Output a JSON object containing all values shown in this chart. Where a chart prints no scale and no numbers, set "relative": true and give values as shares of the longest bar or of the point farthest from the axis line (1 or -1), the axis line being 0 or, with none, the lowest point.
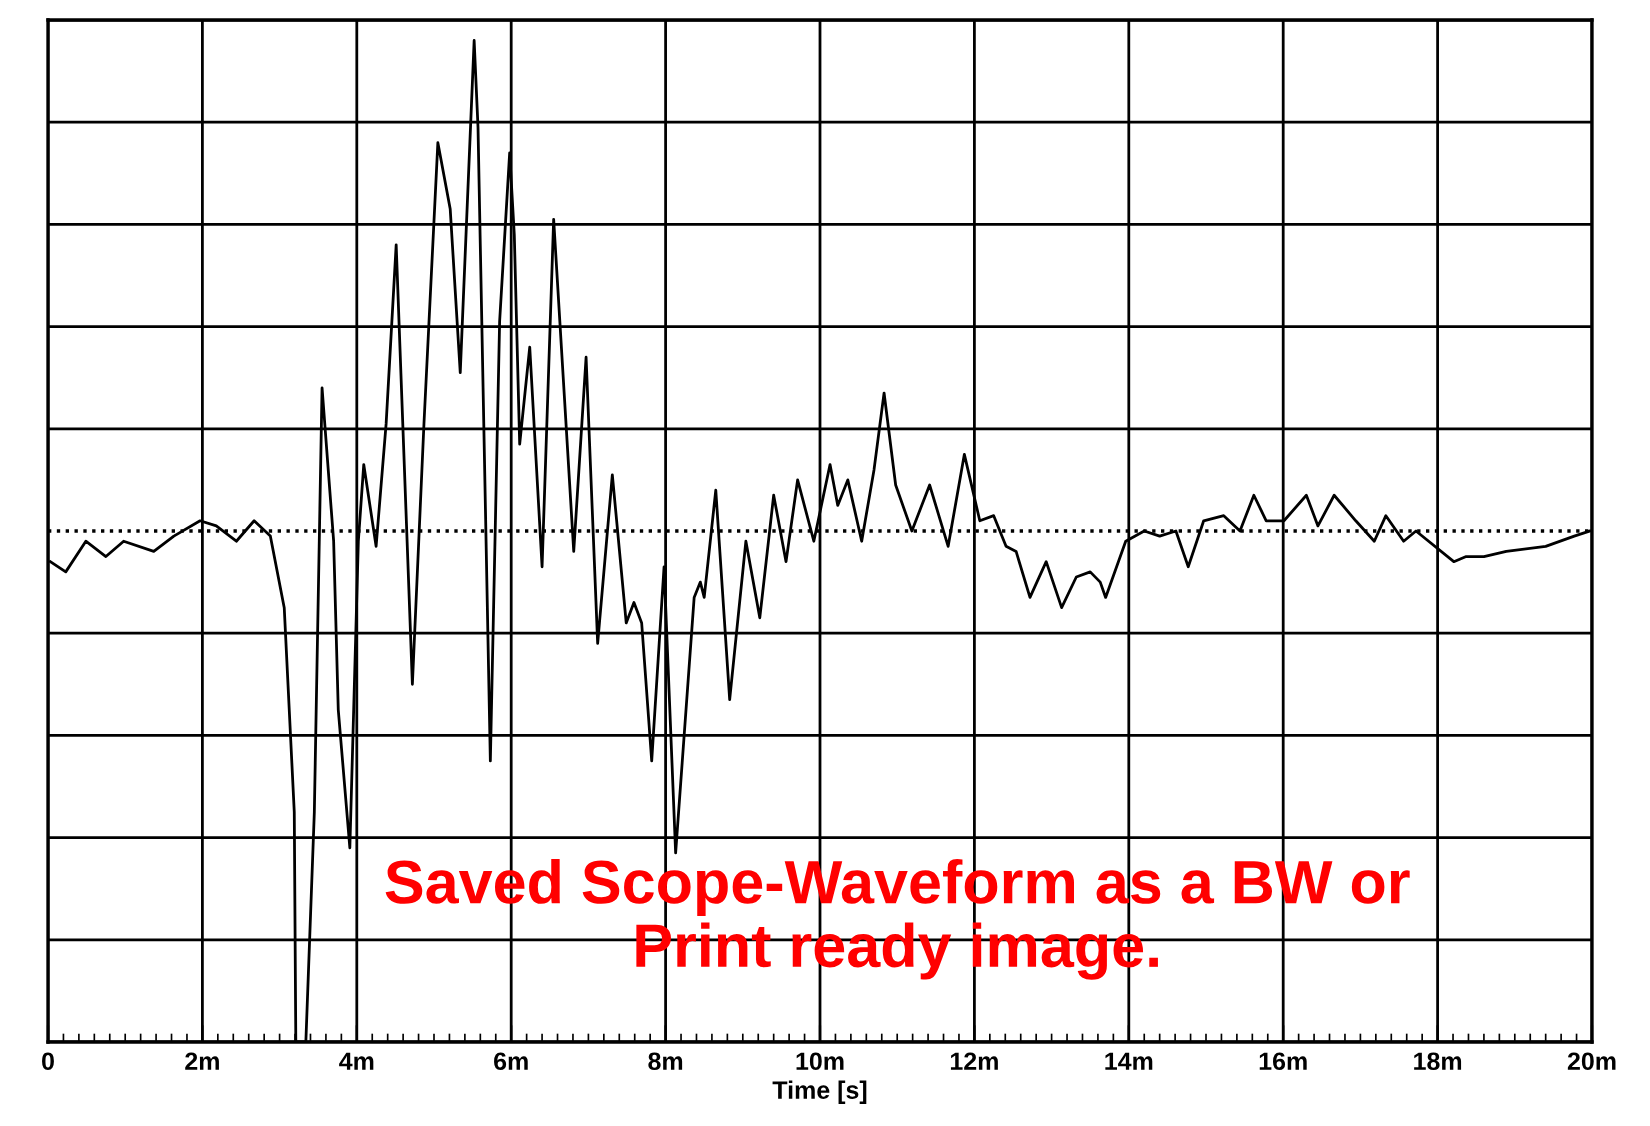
{
  "chart_data": {
    "type": "line",
    "relative": true,
    "xlabel": "Time [s]",
    "xlim": [
      0,
      20
    ],
    "xticks": [
      0,
      {
        "value": 2,
        "label": "2m"
      },
      {
        "value": 4,
        "label": "4m"
      },
      {
        "value": 6,
        "label": "6m"
      },
      {
        "value": 8,
        "label": "8m"
      },
      {
        "value": 10,
        "label": "10m"
      },
      {
        "value": 12,
        "label": "12m"
      },
      {
        "value": 14,
        "label": "14m"
      },
      {
        "value": 16,
        "label": "16m"
      },
      {
        "value": 18,
        "label": "18m"
      },
      {
        "value": 20,
        "label": "20m"
      }
    ],
    "tick_labels": "x",
    "grid": true,
    "legend": false,
    "marker": "none",
    "line_style": "solid",
    "ref_lines": [
      {
        "axis": "y",
        "value": 0,
        "line_style": "dotted",
        "color": "#000000"
      }
    ],
    "annotations": [
      "Saved Scope-Waveform as a BW or\nPrint ready image."
    ],
    "series": [
      {
        "color": "#000000",
        "x": [
          0.03,
          0.23,
          0.49,
          0.75,
          0.98,
          1.37,
          1.63,
          1.97,
          2.18,
          2.44,
          2.67,
          2.88,
          3.06,
          3.19,
          3.21,
          3.34,
          3.45,
          3.55,
          3.7,
          3.76,
          3.91,
          4.02,
          4.09,
          4.25,
          4.38,
          4.51,
          4.72,
          4.87,
          5.05,
          5.21,
          5.34,
          5.52,
          5.57,
          5.73,
          5.85,
          5.98,
          6.04,
          6.11,
          6.24,
          6.4,
          6.55,
          6.81,
          6.97,
          7.12,
          7.31,
          7.49,
          7.59,
          7.69,
          7.82,
          7.98,
          8.13,
          8.37,
          8.45,
          8.5,
          8.65,
          8.83,
          9.04,
          9.22,
          9.4,
          9.56,
          9.71,
          9.92,
          10.13,
          10.23,
          10.36,
          10.54,
          10.7,
          10.83,
          10.98,
          11.19,
          11.42,
          11.66,
          11.87,
          12.07,
          12.25,
          12.41,
          12.54,
          12.72,
          12.93,
          13.13,
          13.32,
          13.5,
          13.63,
          13.7,
          13.96,
          14.2,
          14.4,
          14.61,
          14.77,
          14.97,
          15.23,
          15.44,
          15.62,
          15.78,
          16.01,
          16.3,
          16.45,
          16.66,
          16.94,
          17.18,
          17.33,
          17.56,
          17.72,
          18.21,
          18.37,
          18.6,
          18.89,
          19.4,
          19.77,
          19.97
        ],
        "values": [
          -0.06,
          -0.08,
          -0.02,
          -0.05,
          -0.02,
          -0.04,
          -0.01,
          0.02,
          0.01,
          -0.02,
          0.02,
          -0.01,
          -0.15,
          -0.55,
          -1,
          -1,
          -0.55,
          0.28,
          -0.02,
          -0.35,
          -0.62,
          -0.02,
          0.13,
          -0.03,
          0.21,
          0.56,
          -0.3,
          0.21,
          0.76,
          0.63,
          0.31,
          0.96,
          0.79,
          -0.45,
          0.41,
          0.74,
          0.58,
          0.17,
          0.36,
          -0.07,
          0.61,
          -0.04,
          0.34,
          -0.22,
          0.11,
          -0.18,
          -0.14,
          -0.18,
          -0.45,
          -0.07,
          -0.63,
          -0.13,
          -0.1,
          -0.13,
          0.08,
          -0.33,
          -0.02,
          -0.17,
          0.07,
          -0.06,
          0.1,
          -0.02,
          0.13,
          0.05,
          0.1,
          -0.02,
          0.12,
          0.27,
          0.09,
          0.0,
          0.09,
          -0.03,
          0.15,
          0.02,
          0.03,
          -0.03,
          -0.04,
          -0.13,
          -0.06,
          -0.15,
          -0.09,
          -0.08,
          -0.1,
          -0.13,
          -0.02,
          0.0,
          -0.01,
          0.0,
          -0.07,
          0.02,
          0.03,
          0.0,
          0.07,
          0.02,
          0.02,
          0.07,
          0.01,
          0.07,
          0.02,
          -0.02,
          0.03,
          -0.02,
          0.0,
          -0.06,
          -0.05,
          -0.05,
          -0.04,
          -0.03,
          -0.01,
          0.0
        ]
      }
    ]
  }
}
